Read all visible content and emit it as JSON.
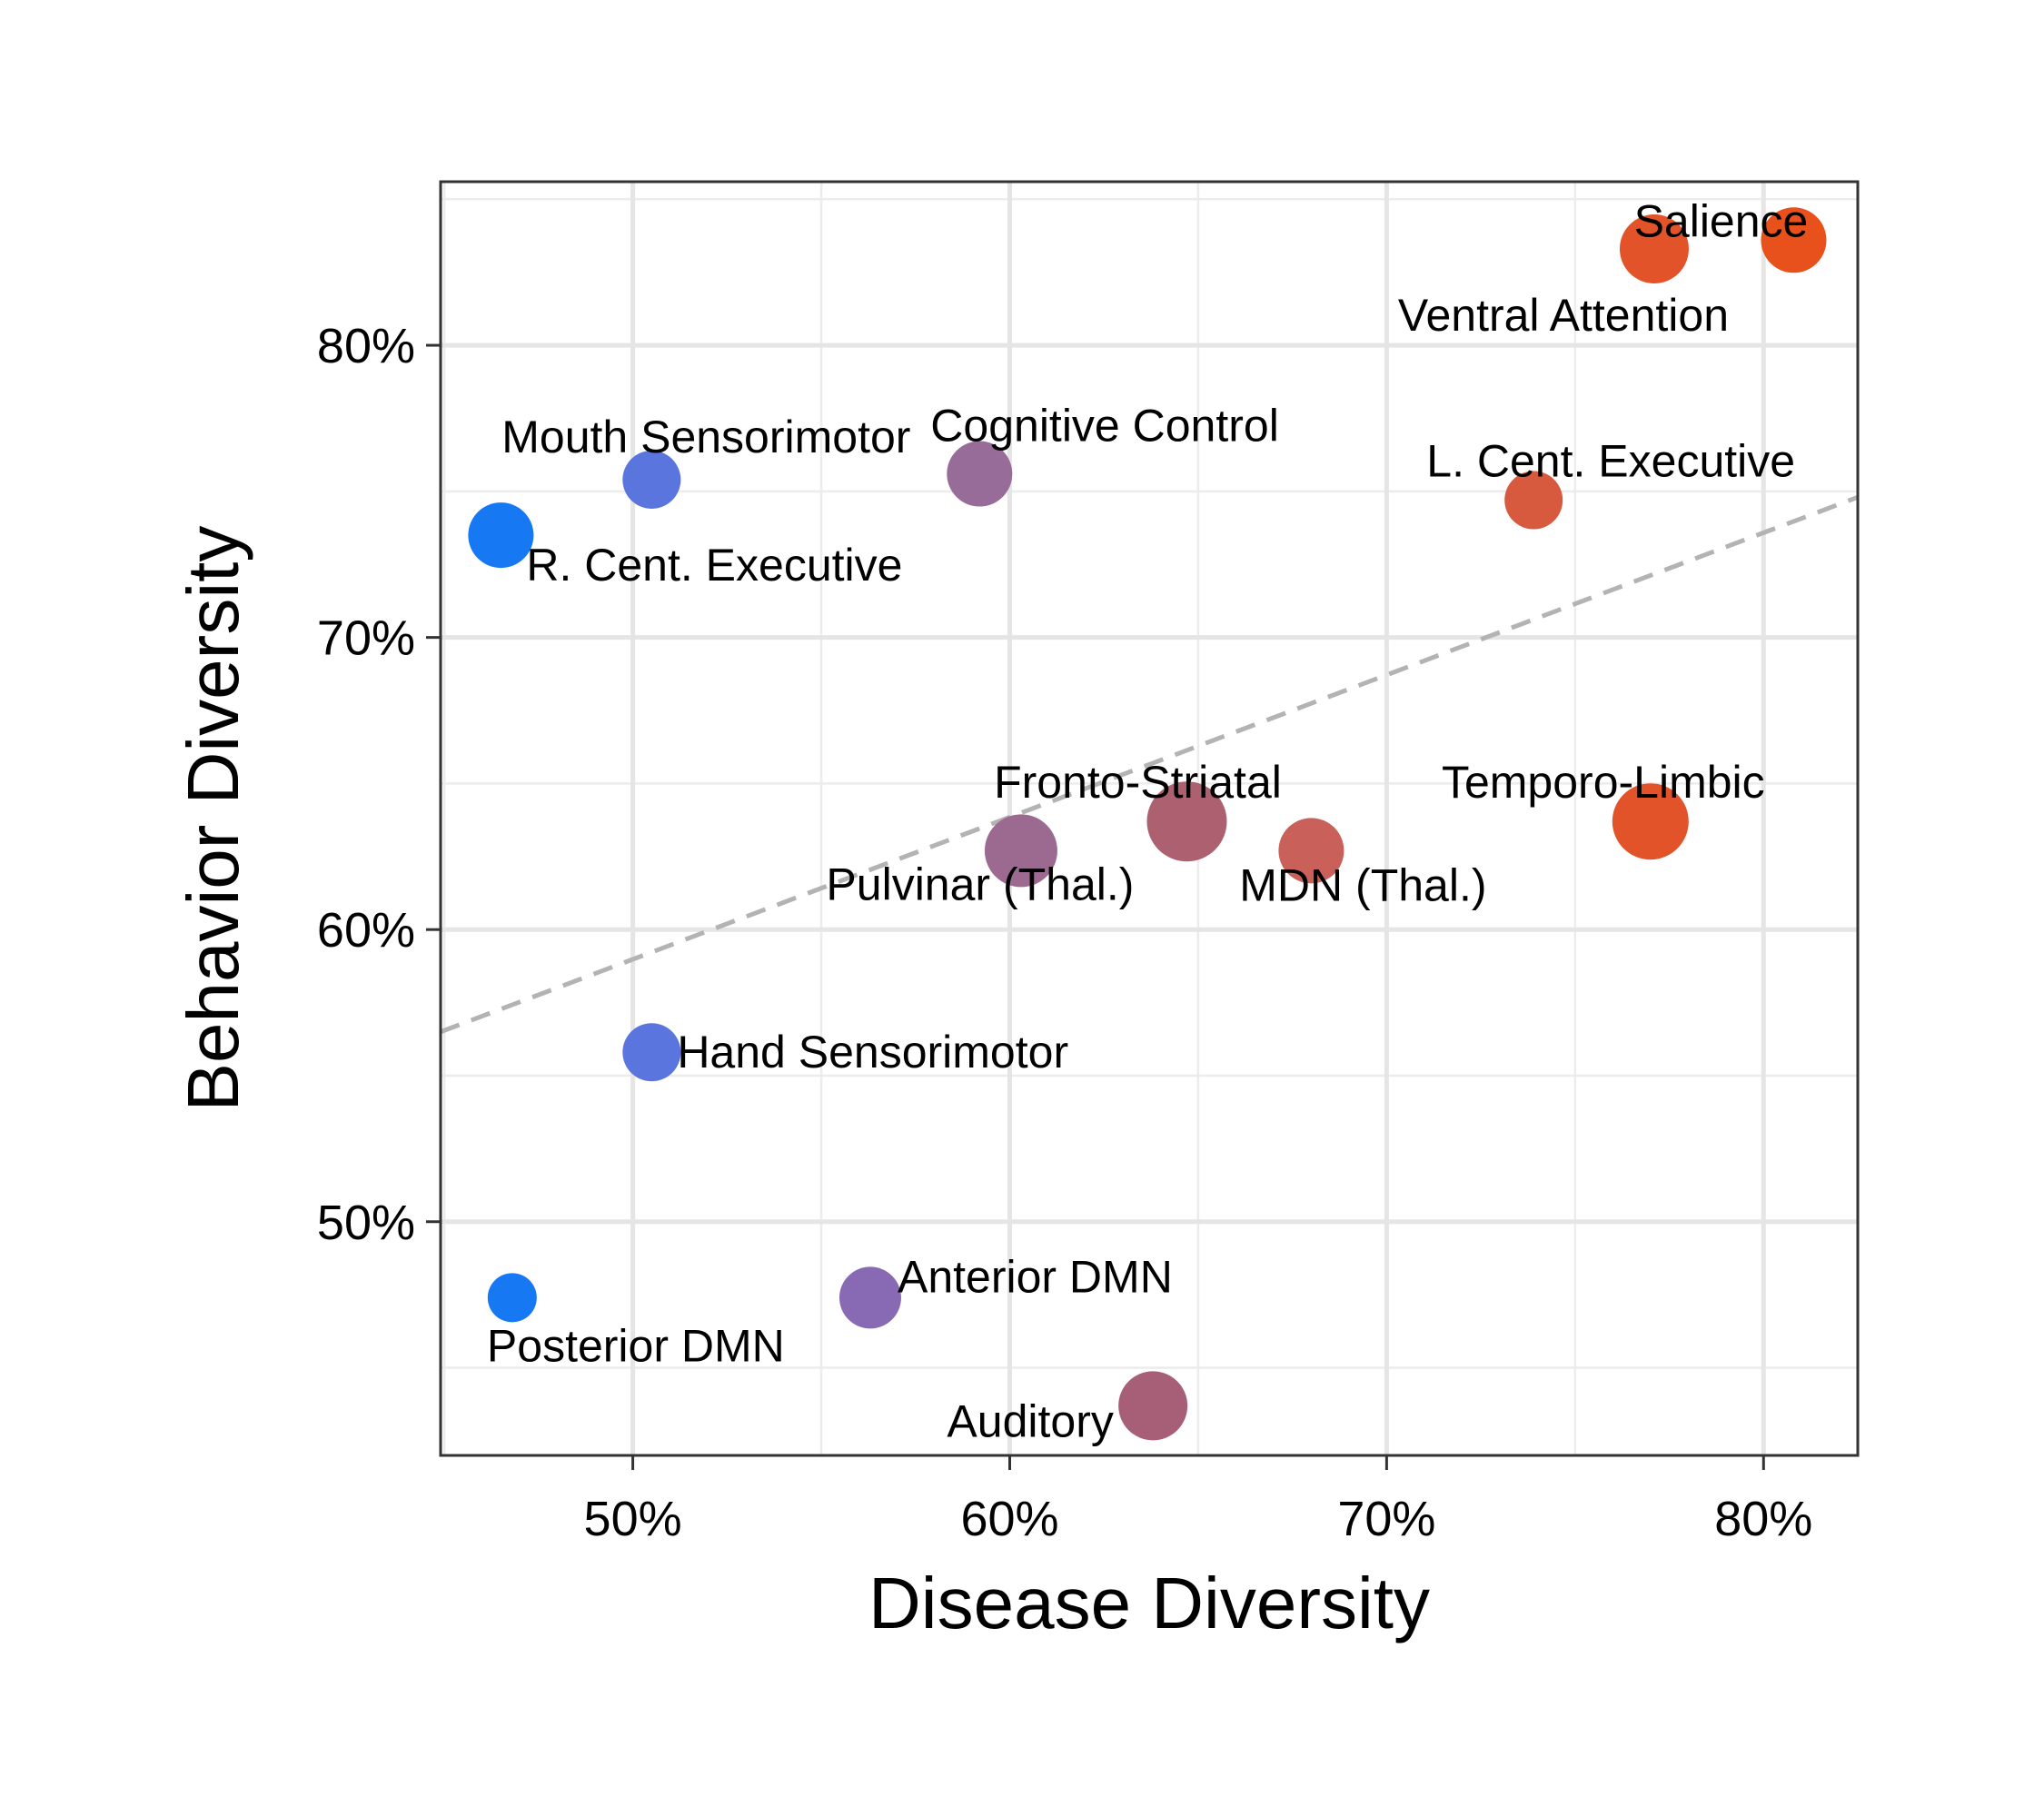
{
  "chart_data": {
    "type": "scatter",
    "title": "",
    "xlabel": "Disease Diversity",
    "ylabel": "Behavior Diversity",
    "xlim": [
      0.449,
      0.825
    ],
    "ylim": [
      0.42,
      0.856
    ],
    "x_ticks": [
      {
        "value": 0.5,
        "label": "50%"
      },
      {
        "value": 0.6,
        "label": "60%"
      },
      {
        "value": 0.7,
        "label": "70%"
      },
      {
        "value": 0.8,
        "label": "80%"
      }
    ],
    "y_ticks": [
      {
        "value": 0.5,
        "label": "50%"
      },
      {
        "value": 0.6,
        "label": "60%"
      },
      {
        "value": 0.7,
        "label": "70%"
      },
      {
        "value": 0.8,
        "label": "80%"
      }
    ],
    "grid": true,
    "trend_line": {
      "style": "dashed",
      "color": "#b3b3b3",
      "start": [
        0.449,
        0.565
      ],
      "end": [
        0.825,
        0.748
      ]
    },
    "points": [
      {
        "label": "Salience",
        "x": 0.808,
        "y": 0.836,
        "color": "#e8501c"
      },
      {
        "label": "Ventral Attention",
        "x": 0.771,
        "y": 0.833,
        "color": "#e2532a"
      },
      {
        "label": "L. Cent. Executive",
        "x": 0.739,
        "y": 0.747,
        "color": "#d85a3e"
      },
      {
        "label": "Temporo-Limbic",
        "x": 0.77,
        "y": 0.637,
        "color": "#e2532a"
      },
      {
        "label": "MDN (Thal.)",
        "x": 0.68,
        "y": 0.627,
        "color": "#c9605a"
      },
      {
        "label": "Fronto-Striatal",
        "x": 0.647,
        "y": 0.637,
        "color": "#ad6170"
      },
      {
        "label": "Pulvinar (Thal.)",
        "x": 0.603,
        "y": 0.627,
        "color": "#9c6a90"
      },
      {
        "label": "Cognitive Control",
        "x": 0.592,
        "y": 0.756,
        "color": "#986c99"
      },
      {
        "label": "Mouth Sensorimotor",
        "x": 0.505,
        "y": 0.754,
        "color": "#5a75dd"
      },
      {
        "label": "R. Cent. Executive",
        "x": 0.465,
        "y": 0.735,
        "color": "#1678f2"
      },
      {
        "label": "Hand Sensorimotor",
        "x": 0.505,
        "y": 0.558,
        "color": "#5a75dd"
      },
      {
        "label": "Anterior DMN",
        "x": 0.563,
        "y": 0.474,
        "color": "#8869b4"
      },
      {
        "label": "Posterior DMN",
        "x": 0.468,
        "y": 0.474,
        "color": "#1678f2"
      },
      {
        "label": "Auditory",
        "x": 0.638,
        "y": 0.437,
        "color": "#a75f78"
      }
    ]
  }
}
